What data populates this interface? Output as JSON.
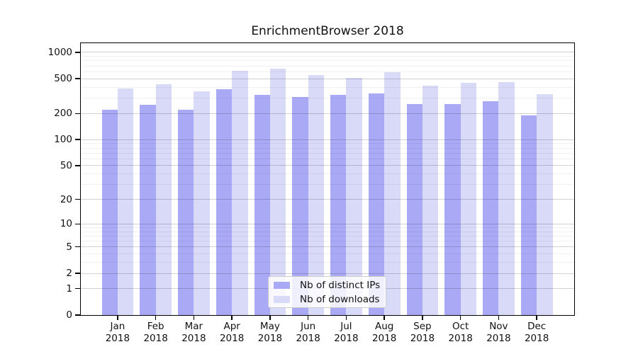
{
  "chart_data": {
    "type": "bar",
    "title": "EnrichmentBrowser 2018",
    "categories": [
      "Jan",
      "Feb",
      "Mar",
      "Apr",
      "May",
      "Jun",
      "Jul",
      "Aug",
      "Sep",
      "Oct",
      "Nov",
      "Dec"
    ],
    "x_tick_second_line": "2018",
    "series": [
      {
        "name": "Nb of distinct IPs",
        "color": "#a9a9f5",
        "values": [
          220,
          250,
          220,
          380,
          325,
          310,
          325,
          340,
          255,
          255,
          275,
          190
        ]
      },
      {
        "name": "Nb of downloads",
        "color": "#d9d9f8",
        "values": [
          385,
          430,
          360,
          620,
          650,
          550,
          510,
          590,
          420,
          445,
          455,
          335
        ]
      }
    ],
    "yscale": "log1p",
    "ylim": [
      0,
      1000
    ],
    "y_ticks": [
      1000,
      500,
      200,
      100,
      50,
      20,
      10,
      5,
      2,
      1,
      0
    ],
    "grid": "on",
    "legend_position": "inside-bottom-center",
    "colors": {
      "background": "#ffffff",
      "frame": "#000000",
      "text": "#111111"
    }
  }
}
